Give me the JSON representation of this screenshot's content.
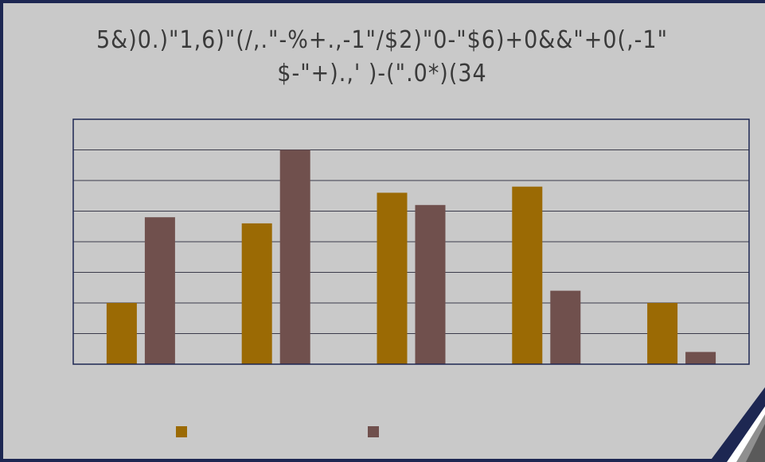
{
  "chart_data": {
    "type": "bar",
    "title_line1": "5&)0.)\"1,6)\"(/,.\"-%+.,-1\"/$2)\"0-\"$6)+0&&\"+0(,-1\"",
    "title_line2": "$-\"+).,' )-(\".0*)(34",
    "categories": [
      "",
      "",
      "",
      "",
      ""
    ],
    "series": [
      {
        "values": [
          2.0,
          4.6,
          5.6,
          5.8,
          2.0
        ],
        "color": "#9b6a04"
      },
      {
        "values": [
          4.8,
          7.0,
          5.2,
          2.4,
          0.4
        ],
        "color": "#70504d"
      }
    ],
    "ylim": [
      0,
      8
    ],
    "grid": true,
    "legend": "bottom"
  },
  "colors": {
    "background": "#c9c9c9",
    "frame": "#1d2752",
    "plot_border": "#1d2752",
    "gridline": "#3a3a4a"
  }
}
